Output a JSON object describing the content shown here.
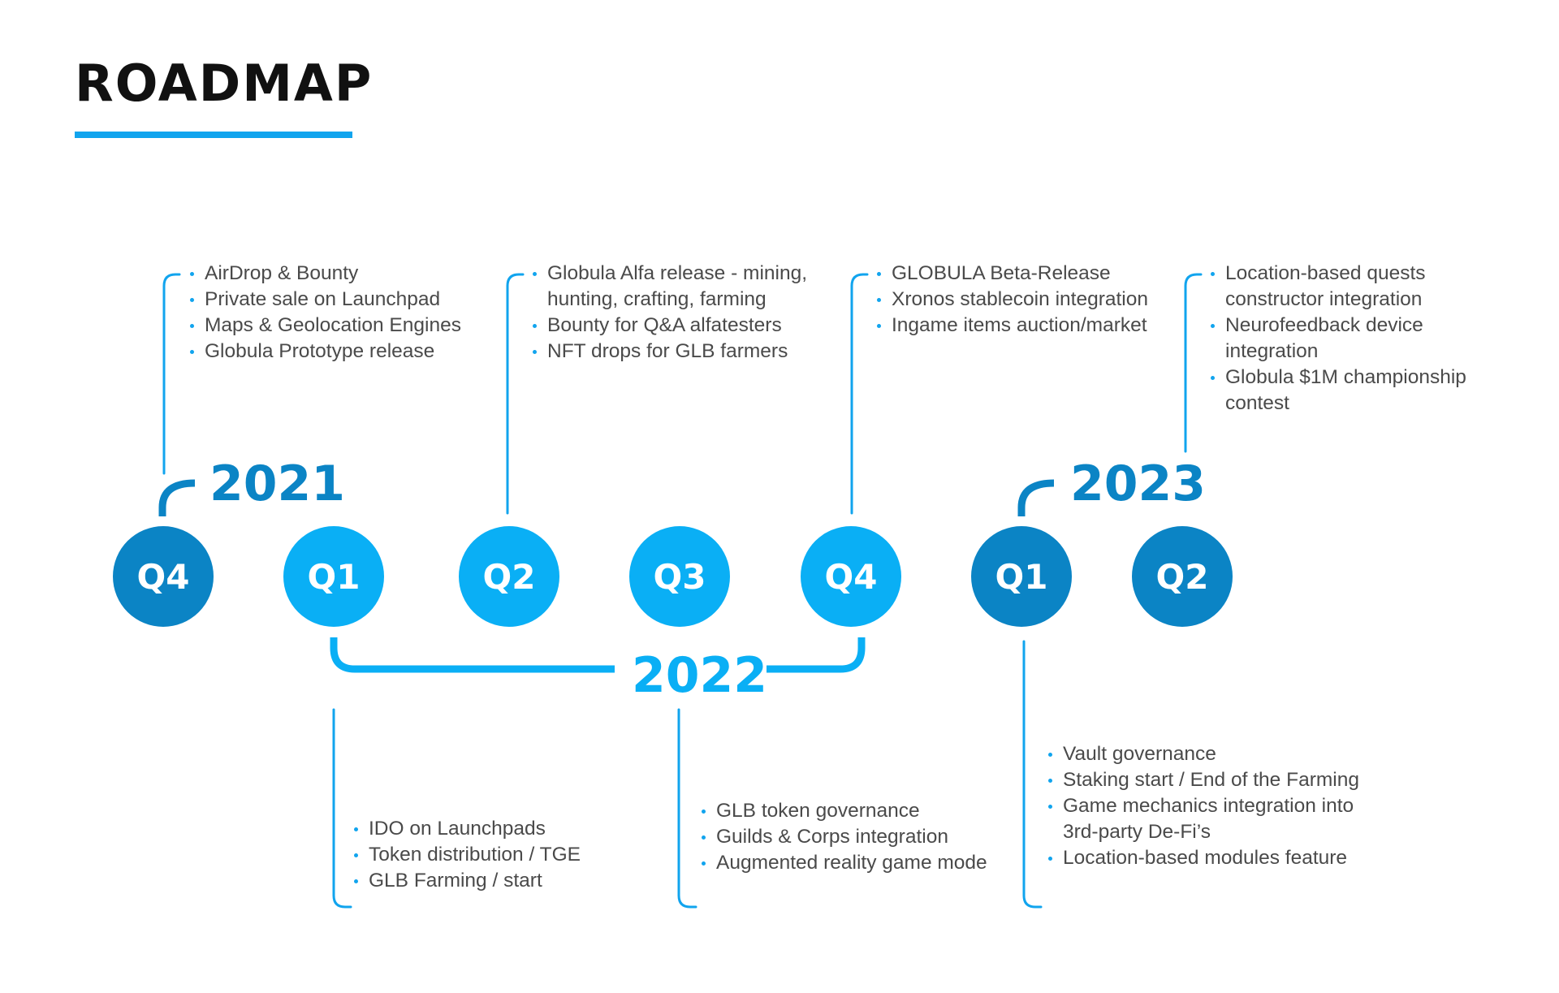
{
  "title": "ROADMAP",
  "colors": {
    "accent": "#11a4ee",
    "dark_circle": "#0b84c5",
    "light_circle": "#0aaff5",
    "text": "#4a4a4a"
  },
  "years": {
    "y2021": "2021",
    "y2022": "2022",
    "y2023": "2023"
  },
  "quarters": [
    {
      "label": "Q4",
      "year": "2021"
    },
    {
      "label": "Q1",
      "year": "2022"
    },
    {
      "label": "Q2",
      "year": "2022"
    },
    {
      "label": "Q3",
      "year": "2022"
    },
    {
      "label": "Q4",
      "year": "2022"
    },
    {
      "label": "Q1",
      "year": "2023"
    },
    {
      "label": "Q2",
      "year": "2023"
    }
  ],
  "milestones": {
    "q4_2021": [
      "AirDrop & Bounty",
      "Private sale on Launchpad",
      "Maps & Geolocation Engines",
      "Globula Prototype release"
    ],
    "q2_2022": [
      "Globula Alfa release - mining, hunting, crafting, farming",
      "Bounty for Q&A alfatesters",
      "NFT drops for GLB farmers"
    ],
    "q4_2022": [
      "GLOBULA Beta-Release",
      "Xronos stablecoin integration",
      "Ingame items auction/market"
    ],
    "q2_2023": [
      "Location-based quests constructor integration",
      "Neurofeedback device integration",
      "Globula $1M championship contest"
    ],
    "q1_2022": [
      "IDO on Launchpads",
      "Token distribution / TGE",
      "GLB Farming / start"
    ],
    "q3_2022": [
      "GLB token governance",
      "Guilds & Corps integration",
      "Augmented reality game mode"
    ],
    "q1_2023": [
      "Vault governance",
      "Staking start / End of the Farming",
      "Game mechanics integration into 3rd-party De-Fi’s",
      "Location-based modules feature"
    ]
  }
}
